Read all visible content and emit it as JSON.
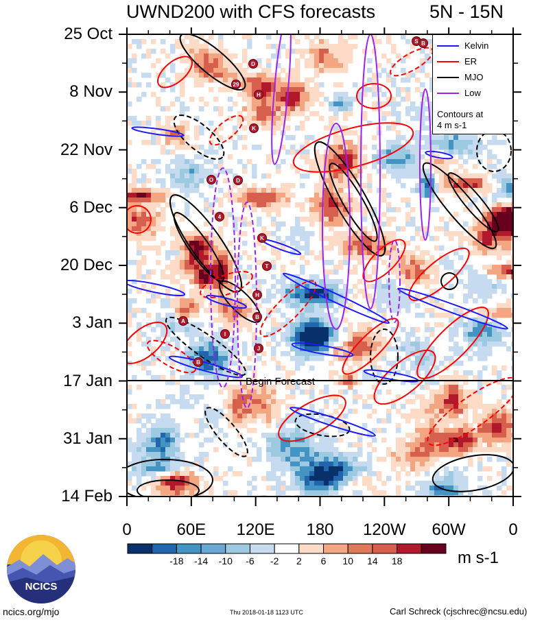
{
  "title": "UWND200 with CFS forecasts",
  "lat_range": "5N - 15N",
  "units": "m s-1",
  "forecast_label": "Begin Forecast",
  "footer": {
    "site": "ncics.org/mjo",
    "timestamp": "Thu 2018-01-18 1123 UTC",
    "author": "Carl Schreck (cjschrec@ncsu.edu)"
  },
  "logo_text": "NCICS",
  "legend": {
    "items": [
      {
        "label": "Kelvin",
        "color": "#1a1aff"
      },
      {
        "label": "ER",
        "color": "#ff0000"
      },
      {
        "label": "MJO",
        "color": "#000000"
      },
      {
        "label": "Low",
        "color": "#a020f0"
      }
    ],
    "note_line1": "Contours at",
    "note_line2": "4 m s-1"
  },
  "colorbar": {
    "labels": [
      "-18",
      "-14",
      "-10",
      "-6",
      "-2",
      "2",
      "6",
      "10",
      "14",
      "18"
    ],
    "colors": [
      "#08306b",
      "#2166ac",
      "#4393c3",
      "#6ba8d4",
      "#9ecae1",
      "#c6dbef",
      "#ffffff",
      "#fddbc7",
      "#f4a582",
      "#e0785c",
      "#d6604d",
      "#b2182b",
      "#67001f"
    ]
  },
  "chart_data": {
    "type": "heatmap",
    "title": "UWND200 with CFS forecasts",
    "subtitle": "5N - 15N",
    "x_axis": {
      "tick_labels": [
        "0",
        "60E",
        "120E",
        "180",
        "120W",
        "60W",
        "0"
      ],
      "range_degE": [
        0,
        360
      ]
    },
    "y_axis": {
      "tick_labels": [
        "25 Oct",
        "8 Nov",
        "22 Nov",
        "6 Dec",
        "20 Dec",
        "3 Jan",
        "17 Jan",
        "31 Jan",
        "14 Feb"
      ],
      "range": [
        "2017-10-25",
        "2018-02-14"
      ]
    },
    "forecast_start": "2018-01-17",
    "color_scale": {
      "min": -18,
      "max": 18,
      "step": 4,
      "units": "m s-1"
    },
    "contour_interval": 4,
    "series": [
      {
        "name": "Kelvin",
        "color": "#1a1aff"
      },
      {
        "name": "ER",
        "color": "#ff0000"
      },
      {
        "name": "MJO",
        "color": "#000000"
      },
      {
        "name": "Low",
        "color": "#a020f0"
      }
    ],
    "storm_markers": [
      "D",
      "29",
      "H",
      "K",
      "O",
      "D",
      "4",
      "K",
      "T",
      "H",
      "B",
      "A",
      "I",
      "J",
      "B",
      "S",
      "B"
    ]
  }
}
